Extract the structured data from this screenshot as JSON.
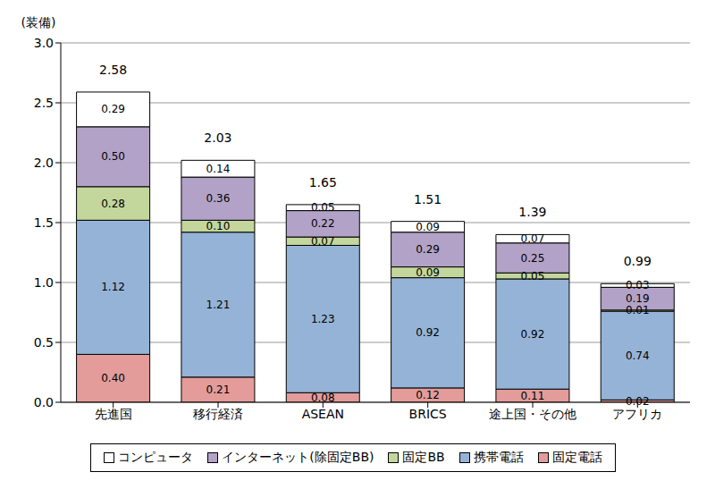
{
  "chart_data": {
    "type": "bar",
    "stacked": true,
    "data_labels": true,
    "grid": true,
    "legend": "bottom",
    "y_label": "(装備)",
    "categories": [
      "先進国",
      "移行経済",
      "ASEAN",
      "BRICS",
      "途上国・その他",
      "アフリカ"
    ],
    "ylim": [
      0,
      3
    ],
    "yticks": [
      {
        "value": 0,
        "label": "0.0"
      },
      0.5,
      {
        "value": 1,
        "label": "1.0"
      },
      1.5,
      {
        "value": 2,
        "label": "2.0"
      },
      2.5,
      {
        "value": 3,
        "label": "3.0"
      }
    ],
    "totals": [
      2.58,
      2.03,
      1.65,
      1.51,
      1.39,
      0.99
    ],
    "series": [
      {
        "name": "固定電話",
        "color": "#e39c9a",
        "values": [
          0.4,
          0.21,
          0.08,
          0.12,
          0.11,
          0.02
        ],
        "value_labels": [
          "0.40",
          "0.21",
          "0.08",
          "0.12",
          "0.11",
          "0.02"
        ]
      },
      {
        "name": "携帯電話",
        "color": "#95b3d7",
        "values": [
          1.12,
          1.21,
          1.23,
          0.92,
          0.92,
          0.74
        ],
        "value_labels": [
          "1.12",
          "1.21",
          "1.23",
          "0.92",
          "0.92",
          "0.74"
        ]
      },
      {
        "name": "固定BB",
        "color": "#c3d69b",
        "values": [
          0.28,
          0.1,
          0.07,
          0.09,
          0.05,
          0.01
        ],
        "value_labels": [
          "0.28",
          "0.10",
          "0.07",
          "0.09",
          "0.05",
          "0.01"
        ]
      },
      {
        "name": "インターネット(除固定BB)",
        "color": "#b3a2c7",
        "values": [
          0.5,
          0.36,
          0.22,
          0.29,
          0.25,
          0.19
        ],
        "value_labels": [
          "0.50",
          "0.36",
          "0.22",
          "0.29",
          "0.25",
          "0.19"
        ]
      },
      {
        "name": "コンピュータ",
        "color": "#ffffff",
        "values": [
          0.29,
          0.14,
          0.05,
          0.09,
          0.07,
          0.03
        ],
        "value_labels": [
          "0.29",
          "0.14",
          "0.05",
          "0.09",
          "0.07",
          "0.03"
        ]
      }
    ]
  }
}
